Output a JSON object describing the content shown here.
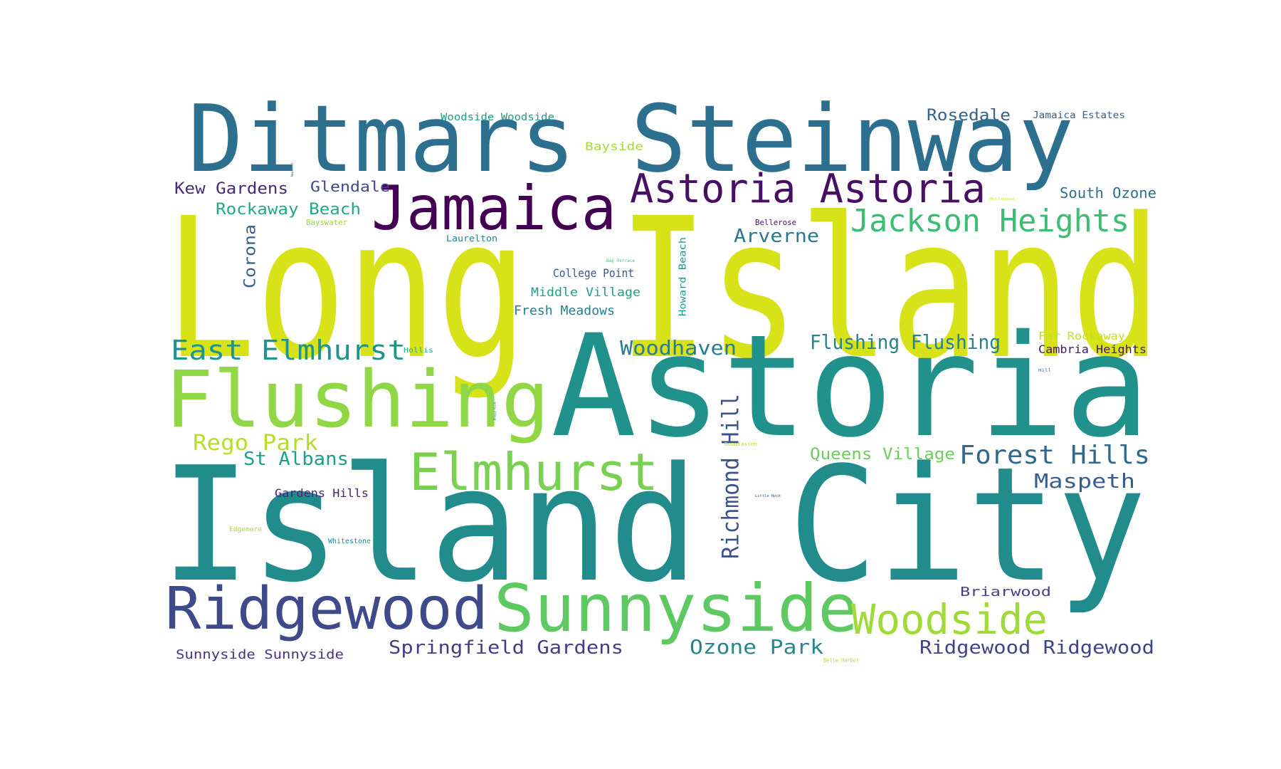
{
  "word_cloud": {
    "words": [
      {
        "text": "Long Island",
        "color": "#d8e219"
      },
      {
        "text": "Astoria",
        "color": "#21918c"
      },
      {
        "text": "Island City",
        "color": "#228c8d"
      },
      {
        "text": "Ditmars Steinway",
        "color": "#2c6f8e"
      },
      {
        "text": "Flushing",
        "color": "#8fd744"
      },
      {
        "text": "Jamaica",
        "color": "#440154"
      },
      {
        "text": "Ridgewood",
        "color": "#3e4a89"
      },
      {
        "text": "Sunnyside",
        "color": "#5ec962"
      },
      {
        "text": "Elmhurst",
        "color": "#7ad151"
      },
      {
        "text": "Astoria Astoria",
        "color": "#471063"
      },
      {
        "text": "Jackson Heights",
        "color": "#3dbc74"
      },
      {
        "text": "Woodside",
        "color": "#a0da39"
      },
      {
        "text": "East Elmhurst",
        "color": "#20938c"
      },
      {
        "text": "Richmond Hill",
        "color": "#3b528b"
      },
      {
        "text": "Forest Hills",
        "color": "#31688e"
      },
      {
        "text": "Rego Park",
        "color": "#b5de2b"
      },
      {
        "text": "Woodhaven",
        "color": "#287c8e"
      },
      {
        "text": "Flushing Flushing",
        "color": "#26828e"
      },
      {
        "text": "Ozone Park",
        "color": "#25858e"
      },
      {
        "text": "Springfield Gardens",
        "color": "#433e85"
      },
      {
        "text": "Ridgewood Ridgewood",
        "color": "#414487"
      },
      {
        "text": "Maspeth",
        "color": "#365d8d"
      },
      {
        "text": "Arverne",
        "color": "#2a788e"
      },
      {
        "text": "Rockaway Beach",
        "color": "#22a884"
      },
      {
        "text": "St Albans",
        "color": "#1f9e89"
      },
      {
        "text": "Queens Village",
        "color": "#6ccd5a"
      },
      {
        "text": "Kew Gardens",
        "color": "#482878"
      },
      {
        "text": "Glendale",
        "color": "#3f4788"
      },
      {
        "text": "Corona",
        "color": "#355f8d"
      },
      {
        "text": "Rosedale",
        "color": "#33638d"
      },
      {
        "text": "South Ozone",
        "color": "#2d708e"
      },
      {
        "text": "Fresh Meadows",
        "color": "#27808e"
      },
      {
        "text": "Middle Village",
        "color": "#1fa088"
      },
      {
        "text": "Sunnyside Sunnyside",
        "color": "#46337e"
      },
      {
        "text": "Briarwood",
        "color": "#424086"
      },
      {
        "text": "Bayside",
        "color": "#a5db36"
      },
      {
        "text": "College Point",
        "color": "#38598c"
      },
      {
        "text": "Cambria Heights",
        "color": "#481668"
      },
      {
        "text": "Far Rockaway",
        "color": "#c2df23"
      },
      {
        "text": "Gardens Hills",
        "color": "#482475"
      },
      {
        "text": "Howard Beach",
        "color": "#1f988b"
      },
      {
        "text": "Woodside Woodside",
        "color": "#1e9b8a"
      },
      {
        "text": "Jamaica Estates",
        "color": "#34618d"
      },
      {
        "text": "Laurelton",
        "color": "#26818e"
      },
      {
        "text": "Bellerose",
        "color": "#48186a"
      },
      {
        "text": "Bayswater",
        "color": "#9bd93c"
      },
      {
        "text": "Hollis",
        "color": "#29af7f"
      },
      {
        "text": "Whitestone",
        "color": "#23898e"
      },
      {
        "text": "Edgemere",
        "color": "#addc30"
      },
      {
        "text": "Belle Harbor",
        "color": "#bddf26"
      },
      {
        "text": "Douglaston",
        "color": "#b8de29"
      },
      {
        "text": "Bay Terrace",
        "color": "#4ac16d"
      },
      {
        "text": "Hollswood",
        "color": "#c8e020"
      },
      {
        "text": "Hill",
        "color": "#2c728e"
      },
      {
        "text": "Little Neck",
        "color": "#39568c"
      },
      {
        "text": "Breezy Point",
        "color": "#297b8e"
      },
      {
        "text": "Neponsit",
        "color": "#2f6c8e"
      }
    ]
  }
}
